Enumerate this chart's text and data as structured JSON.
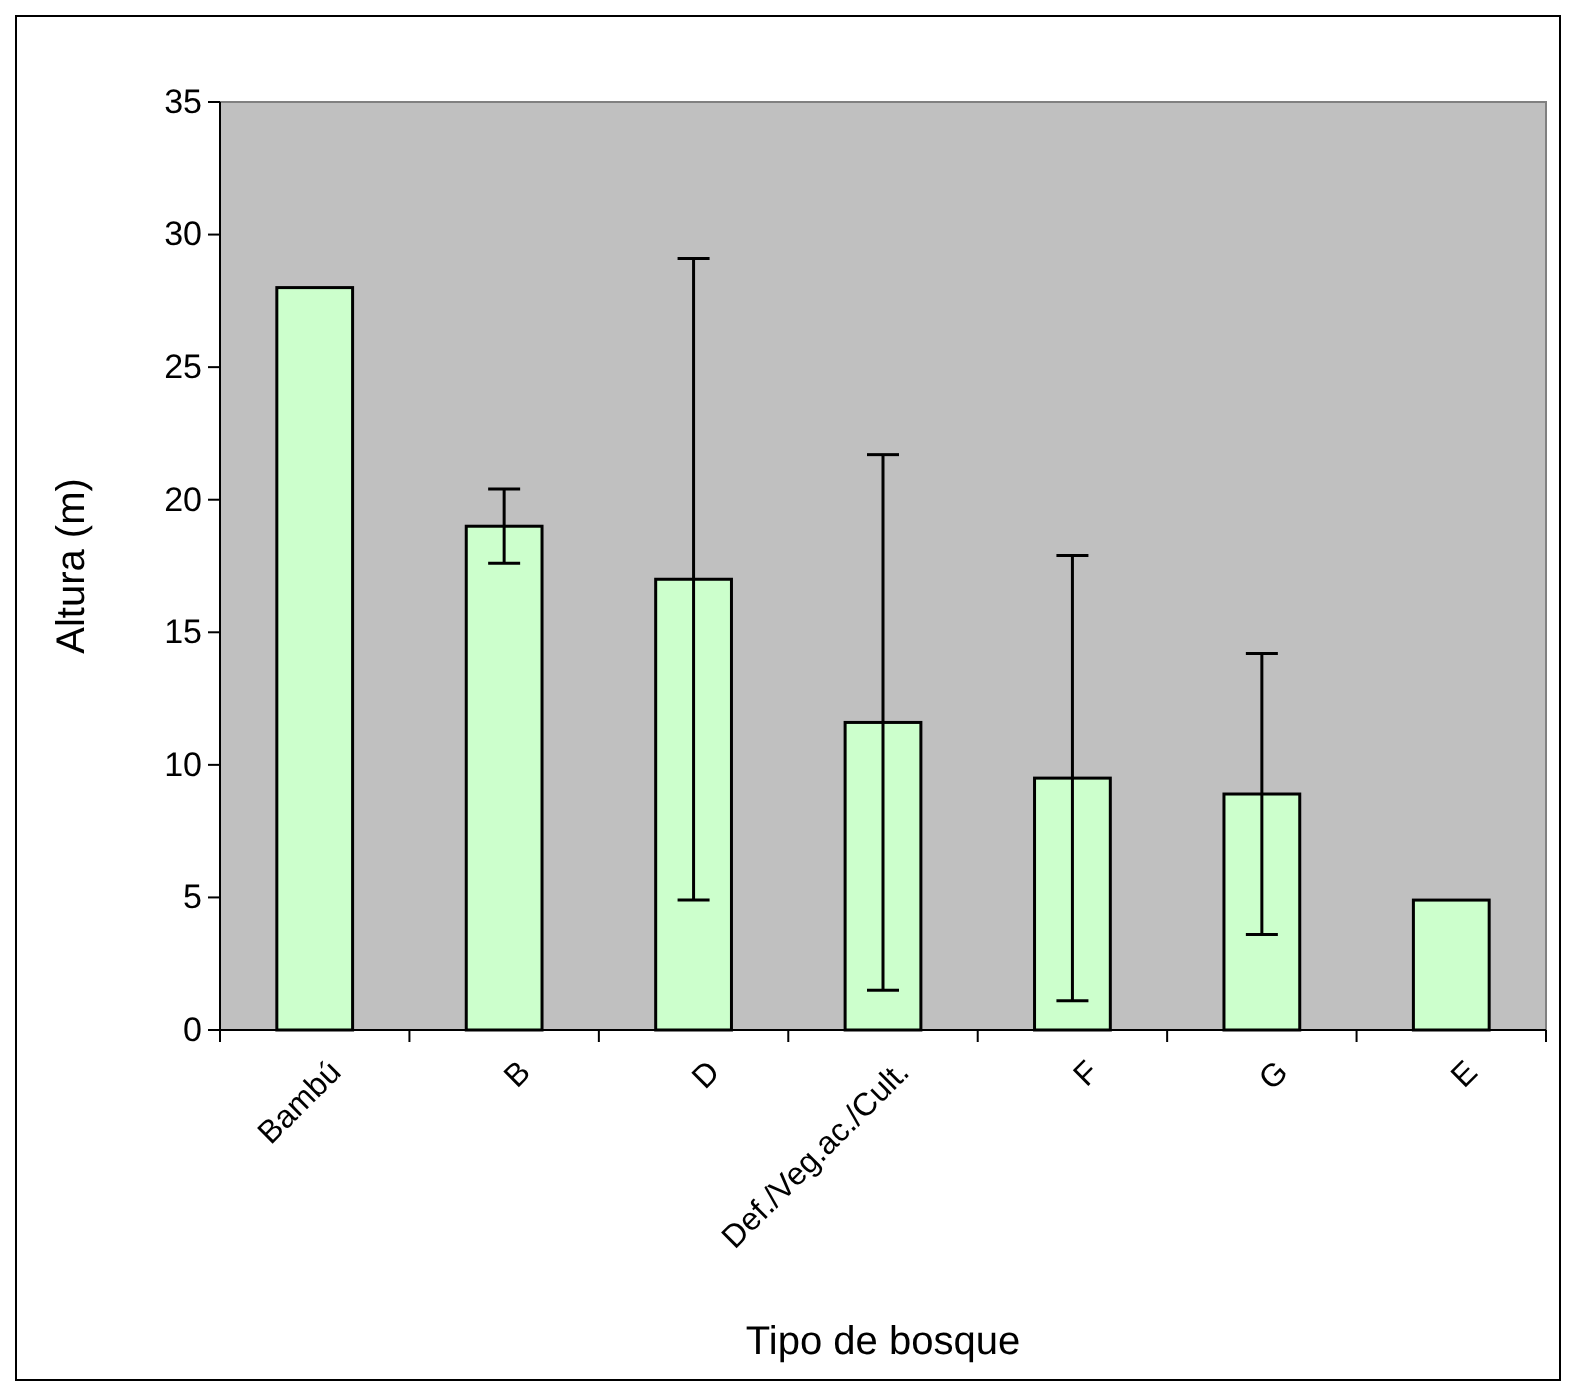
{
  "chart_data": {
    "type": "bar",
    "xlabel": "Tipo de bosque",
    "ylabel": "Altura (m)",
    "categories": [
      "Bambú",
      "B",
      "D",
      "Def./Veg.ac./Cult.",
      "F",
      "G",
      "E"
    ],
    "values": [
      28,
      19,
      17,
      11.6,
      9.5,
      8.9,
      4.9
    ],
    "errors": [
      null,
      1.4,
      12.1,
      10.1,
      8.4,
      5.3,
      null
    ],
    "color": "#ccffcc",
    "ylim": [
      0,
      35
    ],
    "yticks": [
      0,
      5,
      10,
      15,
      20,
      25,
      30,
      35
    ],
    "grid": false
  }
}
